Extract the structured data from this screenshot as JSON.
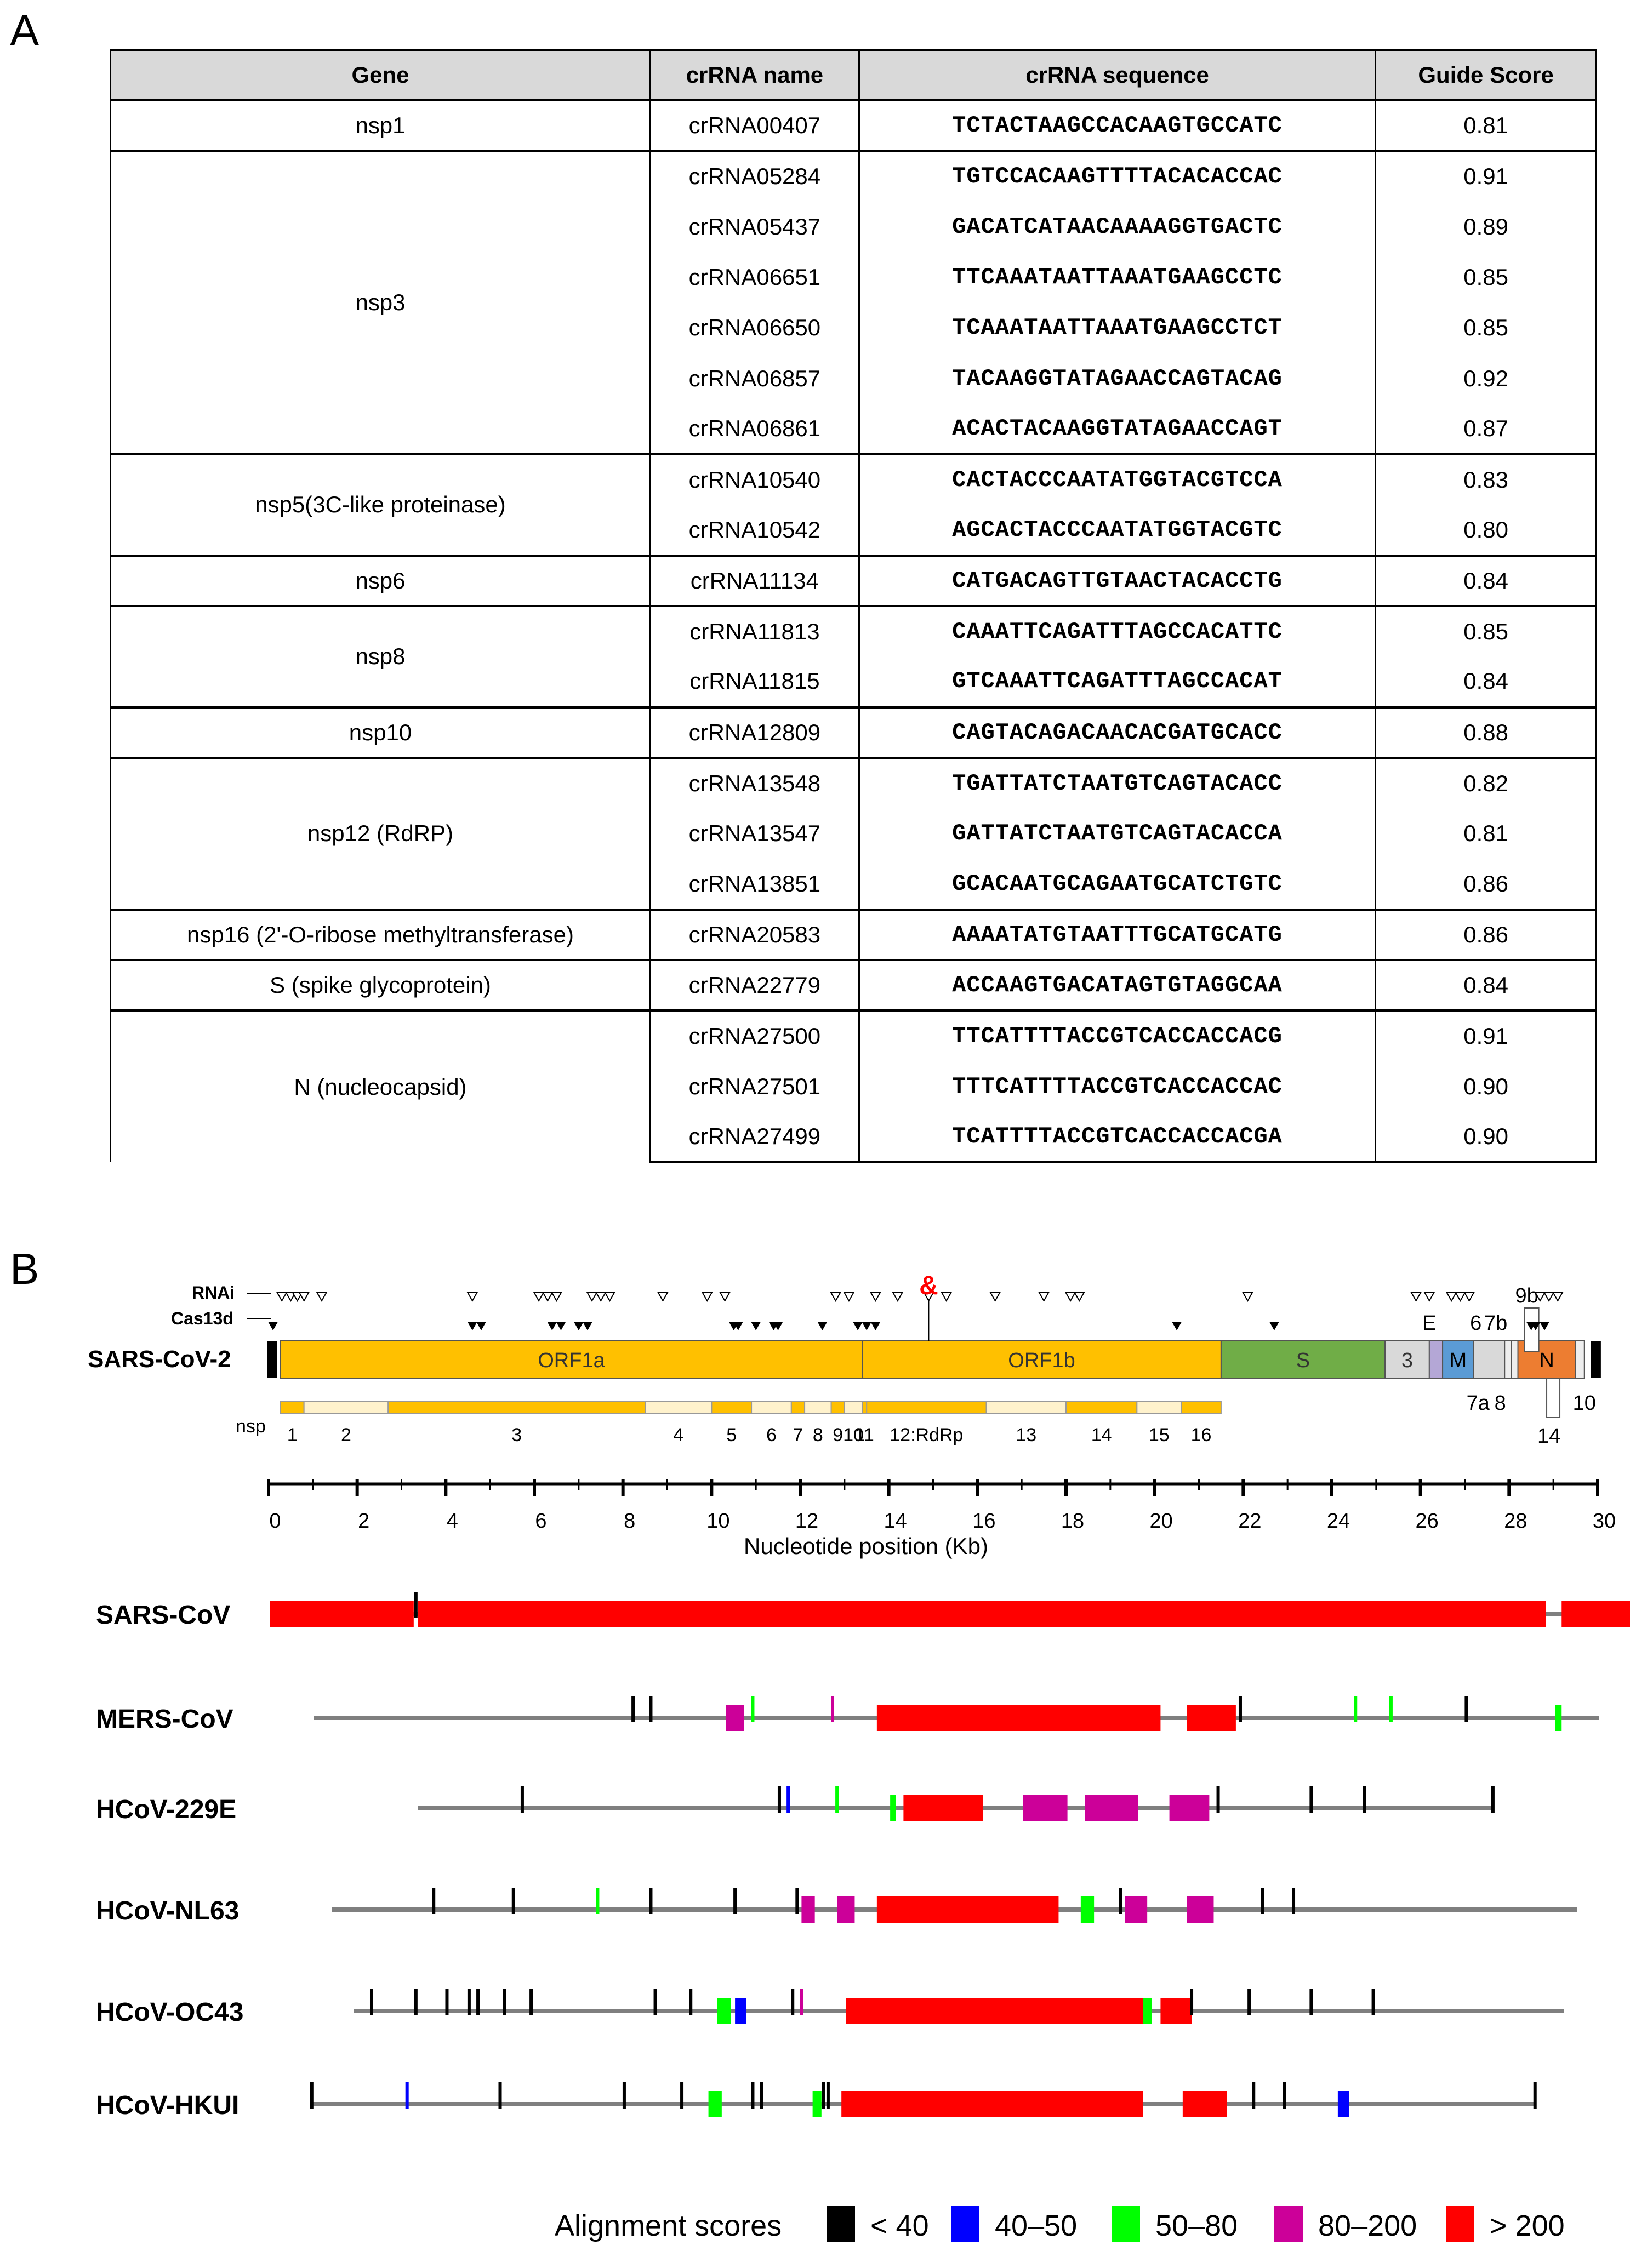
{
  "panel_a": "A",
  "panel_b": "B",
  "table": {
    "headers": [
      "Gene",
      "crRNA name",
      "crRNA sequence",
      "Guide Score"
    ],
    "groups": [
      {
        "gene": "nsp1",
        "rows": [
          [
            "crRNA00407",
            "TCTACTAAGCCACAAGTGCCATC",
            "0.81"
          ]
        ]
      },
      {
        "gene": "nsp3",
        "rows": [
          [
            "crRNA05284",
            "TGTCCACAAGTTTTACACACCAC",
            "0.91"
          ],
          [
            "crRNA05437",
            "GACATCATAACAAAAGGTGACTC",
            "0.89"
          ],
          [
            "crRNA06651",
            "TTCAAATAATTAAATGAAGCCTC",
            "0.85"
          ],
          [
            "crRNA06650",
            "TCAAATAATTAAATGAAGCCTCT",
            "0.85"
          ],
          [
            "crRNA06857",
            "TACAAGGTATAGAACCAGTACAG",
            "0.92"
          ],
          [
            "crRNA06861",
            "ACACTACAAGGTATAGAACCAGT",
            "0.87"
          ]
        ]
      },
      {
        "gene": "nsp5(3C-like proteinase)",
        "rows": [
          [
            "crRNA10540",
            "CACTACCCAATATGGTACGTCCA",
            "0.83"
          ],
          [
            "crRNA10542",
            "AGCACTACCCAATATGGTACGTC",
            "0.80"
          ]
        ]
      },
      {
        "gene": "nsp6",
        "rows": [
          [
            "crRNA11134",
            "CATGACAGTTGTAACTACACCTG",
            "0.84"
          ]
        ]
      },
      {
        "gene": "nsp8",
        "rows": [
          [
            "crRNA11813",
            "CAAATTCAGATTTAGCCACATTC",
            "0.85"
          ],
          [
            "crRNA11815",
            "GTCAAATTCAGATTTAGCCACAT",
            "0.84"
          ]
        ]
      },
      {
        "gene": "nsp10",
        "rows": [
          [
            "crRNA12809",
            "CAGTACAGACAACACGATGCACC",
            "0.88"
          ]
        ]
      },
      {
        "gene": "nsp12 (RdRP)",
        "rows": [
          [
            "crRNA13548",
            "TGATTATCTAATGTCAGTACACC",
            "0.82"
          ],
          [
            "crRNA13547",
            "GATTATCTAATGTCAGTACACCA",
            "0.81"
          ],
          [
            "crRNA13851",
            "GCACAATGCAGAATGCATCTGTC",
            "0.86"
          ]
        ]
      },
      {
        "gene": "nsp16 (2'-O-ribose methyltransferase)",
        "rows": [
          [
            "crRNA20583",
            "AAAATATGTAATTTGCATGCATG",
            "0.86"
          ]
        ]
      },
      {
        "gene": "S (spike glycoprotein)",
        "rows": [
          [
            "crRNA22779",
            "ACCAAGTGACATAGTGTAGGCAA",
            "0.84"
          ]
        ]
      },
      {
        "gene": "N (nucleocapsid)",
        "rows": [
          [
            "crRNA27500",
            "TTCATTTTACCGTCACCACCACG",
            "0.91"
          ],
          [
            "crRNA27501",
            "TTTCATTTTACCGTCACCACCAC",
            "0.90"
          ],
          [
            "crRNA27499",
            "TCATTTTACCGTCACCACCACGA",
            "0.90"
          ]
        ]
      }
    ]
  },
  "genome": {
    "name": "SARS-CoV-2",
    "rnai_label": "RNAi",
    "cas13d_label": "Cas13d",
    "ampersand": "&",
    "genes": [
      {
        "label": "ORF1a",
        "start": 0.27,
        "end": 13.4,
        "color": "#ffc000"
      },
      {
        "label": "ORF1b",
        "start": 13.4,
        "end": 21.5,
        "color": "#ffc000"
      },
      {
        "label": "S",
        "start": 21.5,
        "end": 25.2,
        "color": "#70ad47"
      },
      {
        "label": "3",
        "start": 25.2,
        "end": 26.2,
        "color": "#d9d9d9"
      },
      {
        "label": "",
        "start": 26.2,
        "end": 26.5,
        "color": "#b4a7d6"
      },
      {
        "label": "M",
        "start": 26.5,
        "end": 27.2,
        "color": "#5b9bd5"
      },
      {
        "label": "",
        "start": 27.2,
        "end": 27.9,
        "color": "#d9d9d9"
      },
      {
        "label": "N",
        "start": 28.2,
        "end": 29.5,
        "color": "#ed7d31"
      }
    ],
    "small_labels": [
      {
        "text": "E",
        "x": 26.2,
        "pos": "above"
      },
      {
        "text": "6",
        "x": 27.25,
        "pos": "above"
      },
      {
        "text": "7b",
        "x": 27.7,
        "pos": "above"
      },
      {
        "text": "9b",
        "x": 28.4,
        "pos": "above"
      },
      {
        "text": "7a",
        "x": 27.3,
        "pos": "below"
      },
      {
        "text": "8",
        "x": 27.8,
        "pos": "below"
      },
      {
        "text": "10",
        "x": 29.7,
        "pos": "below"
      },
      {
        "text": "14",
        "x": 28.9,
        "pos": "below"
      }
    ],
    "nsp_label": "nsp",
    "nsps": [
      {
        "label": "1",
        "start": 0.27,
        "end": 0.8,
        "light": false
      },
      {
        "label": "2",
        "start": 0.8,
        "end": 2.7,
        "light": true
      },
      {
        "label": "3",
        "start": 2.7,
        "end": 8.5,
        "light": false
      },
      {
        "label": "4",
        "start": 8.5,
        "end": 10.0,
        "light": true
      },
      {
        "label": "5",
        "start": 10.0,
        "end": 10.9,
        "light": false
      },
      {
        "label": "6",
        "start": 10.9,
        "end": 11.8,
        "light": true
      },
      {
        "label": "7",
        "start": 11.8,
        "end": 12.1,
        "light": false
      },
      {
        "label": "8",
        "start": 12.1,
        "end": 12.7,
        "light": true
      },
      {
        "label": "9",
        "start": 12.7,
        "end": 13.0,
        "light": false
      },
      {
        "label": "10",
        "start": 13.0,
        "end": 13.4,
        "light": true
      },
      {
        "label": "11",
        "start": 13.4,
        "end": 13.5,
        "light": false
      },
      {
        "label": "12:RdRp",
        "start": 13.5,
        "end": 16.2,
        "light": false
      },
      {
        "label": "13",
        "start": 16.2,
        "end": 18.0,
        "light": true
      },
      {
        "label": "14",
        "start": 18.0,
        "end": 19.6,
        "light": false
      },
      {
        "label": "15",
        "start": 19.6,
        "end": 20.6,
        "light": true
      },
      {
        "label": "16",
        "start": 20.6,
        "end": 21.5,
        "light": false
      }
    ],
    "rnai_sites": [
      0.3,
      0.5,
      0.65,
      0.8,
      1.2,
      4.6,
      6.1,
      6.3,
      6.5,
      7.3,
      7.5,
      7.7,
      8.9,
      9.9,
      10.3,
      12.8,
      13.1,
      13.7,
      14.2,
      14.9,
      15.3,
      16.4,
      17.5,
      18.1,
      18.3,
      22.1,
      25.9,
      26.2,
      26.7,
      26.9,
      27.1,
      28.7,
      28.9,
      29.1
    ],
    "cas13d_sites": [
      0.1,
      4.6,
      4.8,
      6.4,
      6.6,
      7.0,
      7.2,
      10.5,
      10.6,
      11.0,
      11.4,
      11.5,
      12.5,
      13.3,
      13.5,
      13.7,
      20.5,
      22.7,
      28.5,
      28.6,
      28.8
    ],
    "axis": {
      "ticks": [
        0,
        2,
        4,
        6,
        8,
        10,
        12,
        14,
        16,
        18,
        20,
        22,
        24,
        26,
        28,
        30
      ],
      "xlabel": "Nucleotide position (Kb)",
      "max": 30
    }
  },
  "alignments": {
    "tracks": [
      {
        "name": "SARS-CoV",
        "span": [
          0,
          30
        ],
        "blocks": [
          [
            0,
            3.25,
            "r"
          ],
          [
            3.35,
            28.8,
            "r"
          ],
          [
            29.15,
            31,
            "r"
          ]
        ],
        "ticks": [
          [
            3.3,
            "k"
          ]
        ]
      },
      {
        "name": "MERS-CoV",
        "span": [
          1,
          30
        ],
        "blocks": [
          [
            10.3,
            10.7,
            "m"
          ],
          [
            13.7,
            20.1,
            "r"
          ],
          [
            20.7,
            21.8,
            "r"
          ],
          [
            29.0,
            29.15,
            "g"
          ]
        ],
        "ticks": [
          [
            8.2,
            "k"
          ],
          [
            8.6,
            "k"
          ],
          [
            10.9,
            "g"
          ],
          [
            12.7,
            "m"
          ],
          [
            21.9,
            "k"
          ],
          [
            24.5,
            "g"
          ],
          [
            25.3,
            "g"
          ],
          [
            27.0,
            "k"
          ]
        ]
      },
      {
        "name": "HCoV-229E",
        "span": [
          3.35,
          27.6
        ],
        "blocks": [
          [
            14.3,
            16.1,
            "r"
          ],
          [
            17.0,
            18.0,
            "m"
          ],
          [
            18.4,
            19.6,
            "m"
          ],
          [
            20.3,
            21.2,
            "m"
          ],
          [
            14.0,
            14.1,
            "g"
          ]
        ],
        "ticks": [
          [
            5.7,
            "k"
          ],
          [
            11.5,
            "k"
          ],
          [
            11.7,
            "b"
          ],
          [
            12.8,
            "g"
          ],
          [
            21.4,
            "k"
          ],
          [
            23.5,
            "k"
          ],
          [
            24.7,
            "k"
          ],
          [
            27.6,
            "k"
          ]
        ]
      },
      {
        "name": "HCoV-NL63",
        "span": [
          1.4,
          29.5
        ],
        "blocks": [
          [
            12.0,
            12.3,
            "m"
          ],
          [
            12.8,
            13.2,
            "m"
          ],
          [
            13.7,
            17.8,
            "r"
          ],
          [
            18.3,
            18.6,
            "g"
          ],
          [
            19.3,
            19.8,
            "m"
          ],
          [
            20.7,
            21.3,
            "m"
          ]
        ],
        "ticks": [
          [
            3.7,
            "k"
          ],
          [
            5.5,
            "k"
          ],
          [
            7.4,
            "g"
          ],
          [
            8.6,
            "k"
          ],
          [
            10.5,
            "k"
          ],
          [
            11.9,
            "k"
          ],
          [
            19.2,
            "k"
          ],
          [
            22.4,
            "k"
          ],
          [
            23.1,
            "k"
          ]
        ]
      },
      {
        "name": "HCoV-OC43",
        "span": [
          1.9,
          29.2
        ],
        "blocks": [
          [
            10.1,
            10.4,
            "g"
          ],
          [
            10.5,
            10.75,
            "b"
          ],
          [
            13.0,
            19.8,
            "r"
          ],
          [
            19.7,
            19.9,
            "g"
          ],
          [
            20.1,
            20.8,
            "r"
          ]
        ],
        "ticks": [
          [
            2.3,
            "k"
          ],
          [
            3.3,
            "k"
          ],
          [
            4.0,
            "k"
          ],
          [
            4.5,
            "k"
          ],
          [
            4.7,
            "k"
          ],
          [
            5.3,
            "k"
          ],
          [
            5.9,
            "k"
          ],
          [
            8.7,
            "k"
          ],
          [
            9.5,
            "k"
          ],
          [
            11.8,
            "k"
          ],
          [
            12.0,
            "m"
          ],
          [
            20.8,
            "k"
          ],
          [
            22.1,
            "k"
          ],
          [
            23.5,
            "k"
          ],
          [
            24.9,
            "k"
          ]
        ]
      },
      {
        "name": "HCoV-HKUI",
        "span": [
          0.95,
          28.55
        ],
        "blocks": [
          [
            9.9,
            10.2,
            "g"
          ],
          [
            12.25,
            12.45,
            "g"
          ],
          [
            12.9,
            19.7,
            "r"
          ],
          [
            20.6,
            21.6,
            "r"
          ],
          [
            24.1,
            24.35,
            "b"
          ]
        ],
        "ticks": [
          [
            0.95,
            "k"
          ],
          [
            3.1,
            "b"
          ],
          [
            5.2,
            "k"
          ],
          [
            8.0,
            "k"
          ],
          [
            9.3,
            "k"
          ],
          [
            10.9,
            "k"
          ],
          [
            11.1,
            "k"
          ],
          [
            12.5,
            "k"
          ],
          [
            12.6,
            "k"
          ],
          [
            22.2,
            "k"
          ],
          [
            22.9,
            "k"
          ],
          [
            28.55,
            "k"
          ]
        ]
      }
    ],
    "colors": {
      "k": "#000000",
      "b": "#0000ff",
      "g": "#00ff00",
      "m": "#cc0099",
      "r": "#ff0000"
    },
    "legend": {
      "title": "Alignment scores",
      "items": [
        {
          "label": "< 40",
          "color": "#000000"
        },
        {
          "label": "40–50",
          "color": "#0000ff"
        },
        {
          "label": "50–80",
          "color": "#00ff00"
        },
        {
          "label": "80–200",
          "color": "#cc0099"
        },
        {
          "label": "> 200",
          "color": "#ff0000"
        }
      ]
    }
  }
}
